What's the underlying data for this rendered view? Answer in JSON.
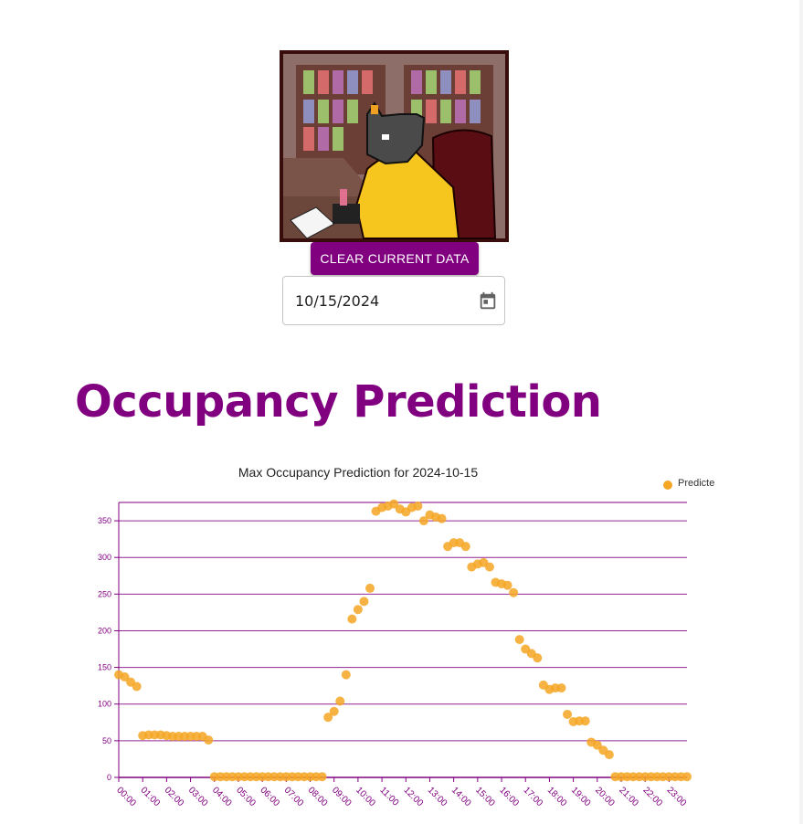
{
  "header": {
    "logo_name": "pixel-art-character-at-desk",
    "clear_button_label": "CLEAR CURRENT DATA",
    "date_value": "10/15/2024",
    "date_icon": "calendar-icon"
  },
  "page_title": "Occupancy Prediction",
  "colors": {
    "accent": "#800080",
    "point": "#f5a623",
    "grid": "#800080"
  },
  "chart_data": {
    "type": "scatter",
    "title": "Max Occupancy Prediction for 2024-10-15",
    "legend": {
      "label": "Predicte",
      "position": "top-right"
    },
    "ylim": [
      0,
      375
    ],
    "y_ticks": [
      0,
      50,
      100,
      150,
      200,
      250,
      300,
      350
    ],
    "x_ticks": [
      "00:00",
      "01:00",
      "02:00",
      "03:00",
      "04:00",
      "05:00",
      "06:00",
      "07:00",
      "08:00",
      "09:00",
      "10:00",
      "11:00",
      "12:00",
      "13:00",
      "14:00",
      "15:00",
      "16:00",
      "17:00",
      "18:00",
      "19:00",
      "20:00",
      "21:00",
      "22:00",
      "23:00"
    ],
    "grid": true,
    "series": [
      {
        "name": "Predicte",
        "x": [
          "00:00",
          "00:15",
          "00:30",
          "00:45",
          "01:00",
          "01:15",
          "01:30",
          "01:45",
          "02:00",
          "02:15",
          "02:30",
          "02:45",
          "03:00",
          "03:15",
          "03:30",
          "03:45",
          "04:00",
          "04:15",
          "04:30",
          "04:45",
          "05:00",
          "05:15",
          "05:30",
          "05:45",
          "06:00",
          "06:15",
          "06:30",
          "06:45",
          "07:00",
          "07:15",
          "07:30",
          "07:45",
          "08:00",
          "08:15",
          "08:30",
          "08:45",
          "09:00",
          "09:15",
          "09:30",
          "09:45",
          "10:00",
          "10:15",
          "10:30",
          "10:45",
          "11:00",
          "11:15",
          "11:30",
          "11:45",
          "12:00",
          "12:15",
          "12:30",
          "12:45",
          "13:00",
          "13:15",
          "13:30",
          "13:45",
          "14:00",
          "14:15",
          "14:30",
          "14:45",
          "15:00",
          "15:15",
          "15:30",
          "15:45",
          "16:00",
          "16:15",
          "16:30",
          "16:45",
          "17:00",
          "17:15",
          "17:30",
          "17:45",
          "18:00",
          "18:15",
          "18:30",
          "18:45",
          "19:00",
          "19:15",
          "19:30",
          "19:45",
          "20:00",
          "20:15",
          "20:30",
          "20:45",
          "21:00",
          "21:15",
          "21:30",
          "21:45",
          "22:00",
          "22:15",
          "22:30",
          "22:45",
          "23:00",
          "23:15",
          "23:30",
          "23:45"
        ],
        "values": [
          140,
          137,
          130,
          124,
          57,
          58,
          58,
          58,
          57,
          56,
          56,
          56,
          56,
          56,
          56,
          51,
          1,
          1,
          1,
          1,
          1,
          1,
          1,
          1,
          1,
          1,
          1,
          1,
          1,
          1,
          1,
          1,
          1,
          1,
          1,
          82,
          90,
          104,
          140,
          216,
          229,
          240,
          258,
          363,
          368,
          370,
          373,
          366,
          362,
          368,
          370,
          350,
          358,
          355,
          353,
          315,
          320,
          320,
          315,
          287,
          291,
          293,
          287,
          266,
          264,
          262,
          252,
          188,
          175,
          169,
          163,
          126,
          120,
          122,
          122,
          86,
          76,
          77,
          77,
          48,
          44,
          37,
          31,
          1,
          1,
          1,
          1,
          1,
          1,
          1,
          1,
          1,
          1,
          1,
          1,
          1
        ]
      }
    ]
  }
}
